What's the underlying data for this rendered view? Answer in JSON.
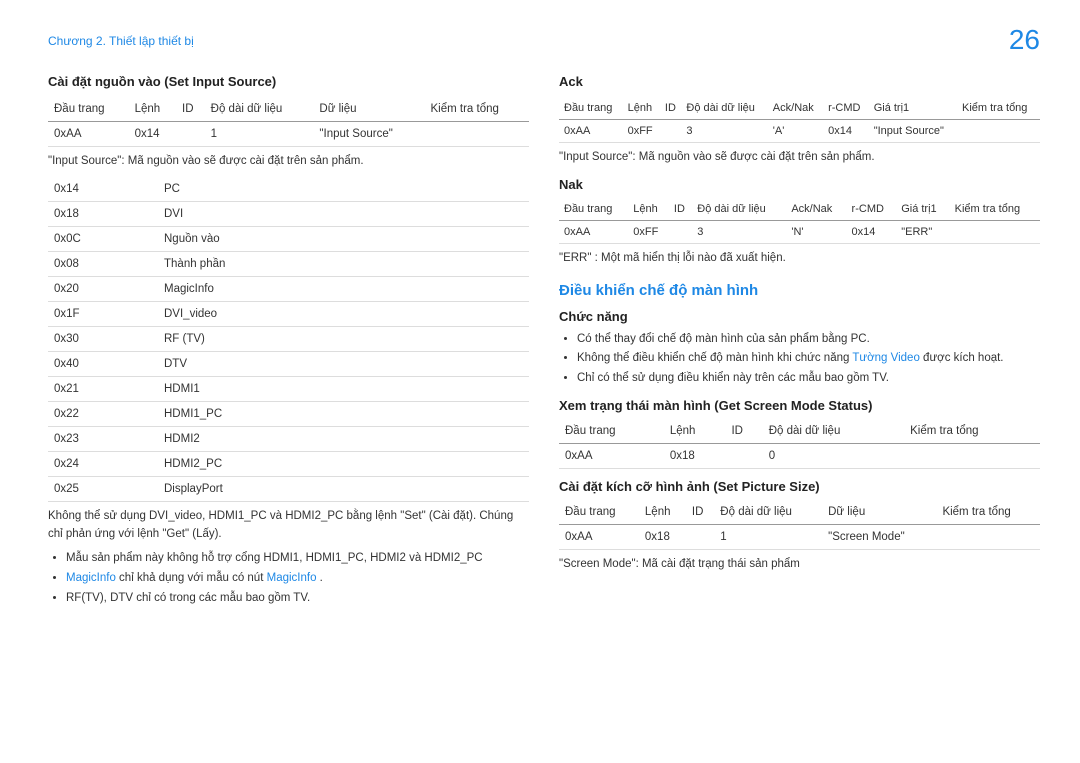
{
  "header": {
    "breadcrumb": "Chương 2. Thiết lập thiết bị",
    "page_number": "26"
  },
  "colors": {
    "accent": "#1e88e5",
    "text": "#333333",
    "border": "#bbbbbb"
  },
  "left": {
    "section1_title": "Cài đặt nguồn vào (Set Input Source)",
    "table1_headers": [
      "Đầu trang",
      "Lệnh",
      "ID",
      "Độ dài dữ liệu",
      "Dữ liệu",
      "Kiểm tra tổng"
    ],
    "table1_row": [
      "0xAA",
      "0x14",
      "",
      "1",
      "\"Input Source\"",
      ""
    ],
    "note1": "\"Input Source\": Mã nguồn vào sẽ được cài đặt trên sản phẩm.",
    "table2_rows": [
      [
        "0x14",
        "PC"
      ],
      [
        "0x18",
        "DVI"
      ],
      [
        "0x0C",
        "Nguồn vào"
      ],
      [
        "0x08",
        "Thành phần"
      ],
      [
        "0x20",
        "MagicInfo"
      ],
      [
        "0x1F",
        "DVI_video"
      ],
      [
        "0x30",
        "RF (TV)"
      ],
      [
        "0x40",
        "DTV"
      ],
      [
        "0x21",
        "HDMI1"
      ],
      [
        "0x22",
        "HDMI1_PC"
      ],
      [
        "0x23",
        "HDMI2"
      ],
      [
        "0x24",
        "HDMI2_PC"
      ],
      [
        "0x25",
        "DisplayPort"
      ]
    ],
    "note2": "Không thể sử dụng DVI_video, HDMI1_PC và HDMI2_PC bằng lệnh \"Set\" (Cài đặt). Chúng chỉ phản ứng với lệnh \"Get\" (Lấy).",
    "bullets": [
      {
        "pre": "Mẫu sản phẩm này không hỗ trợ cổng HDMI1, HDMI1_PC, HDMI2 và HDMI2_PC"
      },
      {
        "pre": "",
        "accent1": "MagicInfo",
        "mid": " chỉ khả dụng với mẫu có nút ",
        "accent2": "MagicInfo",
        "post": " ."
      },
      {
        "pre": "RF(TV), DTV chỉ có trong các mẫu bao gồm TV."
      }
    ]
  },
  "right": {
    "ack": {
      "title": "Ack",
      "headers": [
        "Đầu trang",
        "Lệnh",
        "ID",
        "Độ dài dữ liệu",
        "Ack/Nak",
        "r-CMD",
        "Giá trị1",
        "Kiểm tra tổng"
      ],
      "row": [
        "0xAA",
        "0xFF",
        "",
        "3",
        "'A'",
        "0x14",
        "\"Input Source\"",
        ""
      ]
    },
    "note_ack": "\"Input Source\": Mã nguồn vào sẽ được cài đặt trên sản phẩm.",
    "nak": {
      "title": "Nak",
      "headers": [
        "Đầu trang",
        "Lệnh",
        "ID",
        "Độ dài dữ liệu",
        "Ack/Nak",
        "r-CMD",
        "Giá trị1",
        "Kiểm tra tổng"
      ],
      "row": [
        "0xAA",
        "0xFF",
        "",
        "3",
        "'N'",
        "0x14",
        "\"ERR\"",
        ""
      ]
    },
    "note_nak": "\"ERR\" : Một mã hiển thị lỗi nào đã xuất hiện.",
    "screen_mode": {
      "title": "Điều khiển chế độ màn hình",
      "func_title": "Chức năng",
      "bullets": [
        {
          "text": "Có thể thay đổi chế độ màn hình của sản phẩm bằng PC."
        },
        {
          "pre": "Không thể điều khiển chế độ màn hình khi chức năng ",
          "accent": "Tường Video",
          "post": " được kích hoạt."
        },
        {
          "text": "Chỉ có thể sử dụng điều khiển này trên các mẫu bao gồm TV."
        }
      ],
      "status_title": "Xem trạng thái màn hình (Get Screen Mode Status)",
      "status_headers": [
        "Đầu trang",
        "Lệnh",
        "ID",
        "Độ dài dữ liệu",
        "Kiểm tra tổng"
      ],
      "status_row": [
        "0xAA",
        "0x18",
        "",
        "0",
        ""
      ],
      "size_title": "Cài đặt kích cỡ hình ảnh (Set Picture Size)",
      "size_headers": [
        "Đầu trang",
        "Lệnh",
        "ID",
        "Độ dài dữ liệu",
        "Dữ liệu",
        "Kiểm tra tổng"
      ],
      "size_row": [
        "0xAA",
        "0x18",
        "",
        "1",
        "\"Screen Mode\"",
        ""
      ],
      "note_size": "\"Screen Mode\": Mã cài đặt trạng thái sản phẩm"
    }
  }
}
